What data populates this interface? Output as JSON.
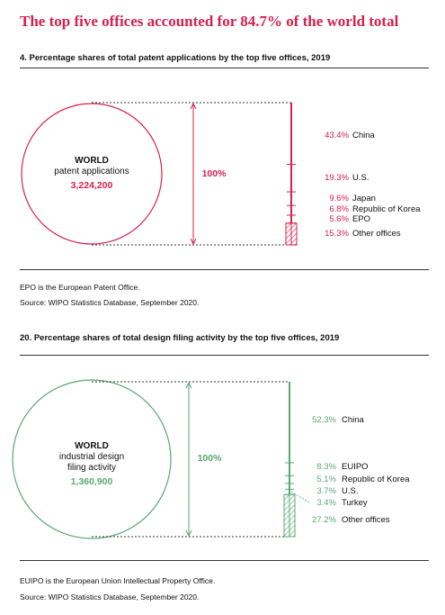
{
  "headline": "The top five offices accounted for 84.7% of the world total",
  "chart_data": [
    {
      "type": "bar",
      "title": "4. Percentage shares of total patent applications by the top five offices, 2019",
      "world_label": "WORLD",
      "world_desc": [
        "patent applications"
      ],
      "world_value": "3,224,200",
      "total_label": "100%",
      "color": "#d6204e",
      "segments": [
        {
          "label": "China",
          "value": 43.4,
          "value_text": "43.4%"
        },
        {
          "label": "U.S.",
          "value": 19.3,
          "value_text": "19.3%"
        },
        {
          "label": "Japan",
          "value": 9.6,
          "value_text": "9.6%"
        },
        {
          "label": "Republic of Korea",
          "value": 6.8,
          "value_text": "6.8%"
        },
        {
          "label": "EPO",
          "value": 5.6,
          "value_text": "5.6%"
        },
        {
          "label": "Other offices",
          "value": 15.3,
          "value_text": "15.3%",
          "hatched": true
        }
      ],
      "note": "EPO is the European Patent Office.",
      "source": "Source: WIPO Statistics Database, September 2020."
    },
    {
      "type": "bar",
      "title": "20. Percentage shares of total design filing activity by the top five offices, 2019",
      "world_label": "WORLD",
      "world_desc": [
        "industrial design",
        "filing activity"
      ],
      "world_value": "1,360,900",
      "total_label": "100%",
      "color": "#5aa873",
      "segments": [
        {
          "label": "China",
          "value": 52.3,
          "value_text": "52.3%"
        },
        {
          "label": "EUIPO",
          "value": 8.3,
          "value_text": "8.3%"
        },
        {
          "label": "Republic of Korea",
          "value": 5.1,
          "value_text": "5.1%"
        },
        {
          "label": "U.S.",
          "value": 3.7,
          "value_text": "3.7%"
        },
        {
          "label": "Turkey",
          "value": 3.4,
          "value_text": "3.4%"
        },
        {
          "label": "Other offices",
          "value": 27.2,
          "value_text": "27.2%",
          "hatched": true
        }
      ],
      "note": "EUIPO is the European Union Intellectual Property Office.",
      "source": "Source: WIPO Statistics Database, September 2020."
    }
  ]
}
